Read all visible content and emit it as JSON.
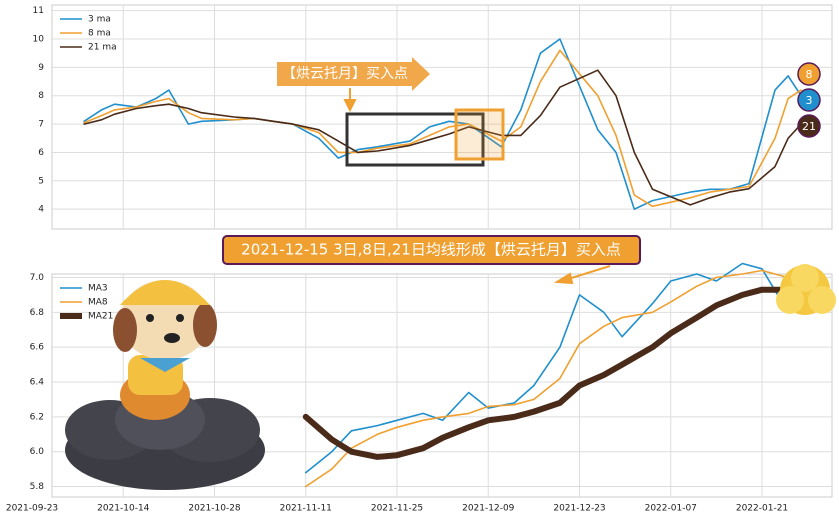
{
  "chart_data": [
    {
      "type": "line",
      "annotation": "【烘云托月】买入点",
      "ylim": [
        3.3,
        11.2
      ],
      "yticks": [
        4,
        5,
        6,
        7,
        8,
        9,
        10,
        11
      ],
      "grid": true,
      "legend": "upper left",
      "x": [
        "2021-10-05",
        "2021-10-09",
        "2021-10-12",
        "2021-10-16",
        "2021-10-19",
        "2021-10-21",
        "2021-10-24",
        "2021-10-26",
        "2021-10-31",
        "2021-11-03",
        "2021-11-06",
        "2021-11-09",
        "2021-11-13",
        "2021-11-16",
        "2021-11-19",
        "2021-11-22",
        "2021-11-27",
        "2021-11-30",
        "2021-12-03",
        "2021-12-06",
        "2021-12-11",
        "2021-12-14",
        "2021-12-17",
        "2021-12-20",
        "2021-12-26",
        "2021-12-29",
        "2022-01-01",
        "2022-01-04",
        "2022-01-10",
        "2022-01-13",
        "2022-01-16",
        "2022-01-19",
        "2022-01-23",
        "2022-01-25",
        "2022-01-27"
      ],
      "series": [
        {
          "name": "3 ma",
          "label": "3",
          "color": "#1f8fce",
          "values": [
            7.1,
            7.5,
            7.7,
            7.6,
            7.9,
            8.2,
            7.0,
            7.1,
            7.15,
            7.2,
            7.1,
            7.0,
            6.5,
            5.8,
            6.1,
            6.2,
            6.4,
            6.9,
            7.1,
            7.0,
            6.2,
            7.5,
            9.5,
            10.0,
            6.8,
            6.0,
            4.0,
            4.3,
            4.6,
            4.7,
            4.7,
            4.9,
            8.2,
            8.7,
            8.0
          ]
        },
        {
          "name": "8 ma",
          "label": "8",
          "color": "#f0a030",
          "values": [
            7.05,
            7.3,
            7.5,
            7.6,
            7.8,
            7.9,
            7.4,
            7.2,
            7.15,
            7.2,
            7.1,
            7.0,
            6.7,
            6.0,
            6.0,
            6.15,
            6.3,
            6.6,
            6.9,
            7.0,
            6.4,
            6.9,
            8.5,
            9.6,
            8.0,
            6.6,
            4.5,
            4.1,
            4.4,
            4.6,
            4.7,
            4.8,
            6.5,
            7.9,
            8.2
          ]
        },
        {
          "name": "21 ma",
          "label": "21",
          "color": "#4a2a18",
          "values": [
            7.0,
            7.15,
            7.35,
            7.55,
            7.65,
            7.7,
            7.55,
            7.4,
            7.25,
            7.2,
            7.1,
            7.0,
            6.8,
            6.4,
            6.0,
            6.05,
            6.25,
            6.45,
            6.65,
            6.9,
            6.6,
            6.6,
            7.3,
            8.3,
            8.9,
            8.0,
            6.0,
            4.7,
            4.15,
            4.4,
            4.6,
            4.72,
            5.5,
            6.5,
            7.0
          ]
        }
      ]
    },
    {
      "type": "line",
      "title": "2021-12-15 3日,8日,21日均线形成【烘云托月】买入点",
      "ylim": [
        5.74,
        7.02
      ],
      "yticks": [
        5.8,
        {
          "value": 6.0,
          "label": "6.0"
        },
        6.2,
        6.4,
        6.6,
        6.8,
        {
          "value": 7.0,
          "label": "7.0"
        }
      ],
      "grid": true,
      "legend": "upper left",
      "xticks": [
        "2021-09-23",
        "2021-10-14",
        "2021-10-28",
        "2021-11-11",
        "2021-11-25",
        "2021-12-09",
        "2021-12-23",
        "2022-01-07",
        "2022-01-21"
      ],
      "x": [
        "2021-11-11",
        "2021-11-15",
        "2021-11-18",
        "2021-11-22",
        "2021-11-25",
        "2021-11-29",
        "2021-12-02",
        "2021-12-06",
        "2021-12-09",
        "2021-12-13",
        "2021-12-16",
        "2021-12-20",
        "2021-12-23",
        "2021-12-27",
        "2021-12-30",
        "2022-01-04",
        "2022-01-07",
        "2022-01-11",
        "2022-01-14",
        "2022-01-18",
        "2022-01-21",
        "2022-01-25"
      ],
      "series": [
        {
          "name": "MA3",
          "color": "#1f8fce",
          "values": [
            5.88,
            6.0,
            6.12,
            6.15,
            6.18,
            6.22,
            6.18,
            6.34,
            6.25,
            6.28,
            6.38,
            6.6,
            6.9,
            6.8,
            6.66,
            6.85,
            6.98,
            7.02,
            6.98,
            7.08,
            7.05,
            6.8
          ]
        },
        {
          "name": "MA8",
          "color": "#f0a030",
          "values": [
            5.8,
            5.9,
            6.02,
            6.1,
            6.14,
            6.18,
            6.2,
            6.22,
            6.26,
            6.27,
            6.3,
            6.42,
            6.62,
            6.72,
            6.77,
            6.8,
            6.86,
            6.95,
            7.0,
            7.02,
            7.04,
            7.0
          ]
        },
        {
          "name": "MA21",
          "color": "#4a2a18",
          "width": 6,
          "values": [
            6.2,
            6.07,
            6.0,
            5.97,
            5.98,
            6.02,
            6.08,
            6.14,
            6.18,
            6.2,
            6.23,
            6.28,
            6.38,
            6.44,
            6.5,
            6.6,
            6.68,
            6.77,
            6.84,
            6.9,
            6.93,
            6.93
          ]
        }
      ]
    }
  ]
}
